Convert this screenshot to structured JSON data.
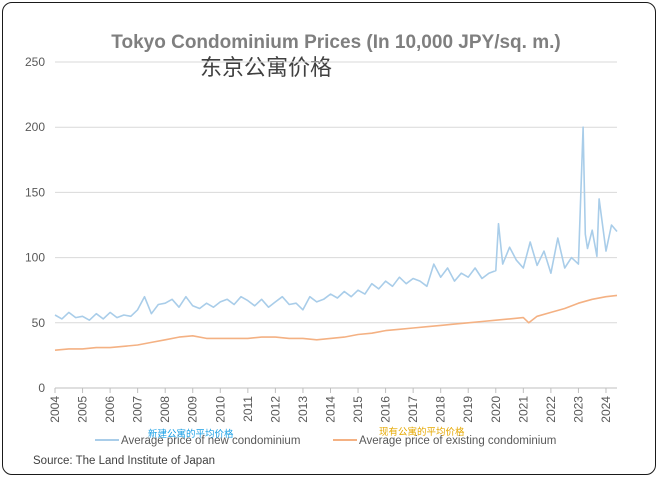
{
  "chart_data": {
    "type": "line",
    "title": "Tokyo Condominium Prices (In 10,000 JPY/sq. m.)",
    "subtitle": "东京公寓价格",
    "source": "Source: The Land Institute of Japan",
    "ylim": [
      0,
      250
    ],
    "yticks": [
      "0",
      "50",
      "100",
      "150",
      "200",
      "250"
    ],
    "xlim": [
      2004,
      2024.4
    ],
    "xticks": [
      "2004",
      "2005",
      "2006",
      "2007",
      "2008",
      "2009",
      "2010",
      "2011",
      "2012",
      "2013",
      "2014",
      "2015",
      "2016",
      "2017",
      "2018",
      "2019",
      "2020",
      "2021",
      "2022",
      "2023",
      "2024"
    ],
    "grid": true,
    "legend_position": "bottom",
    "series": [
      {
        "name": "Average price of new condominium",
        "name_cn": "新建公寓的平均价格",
        "color": "#a9cde9",
        "x": [
          2004.0,
          2004.25,
          2004.5,
          2004.75,
          2005.0,
          2005.25,
          2005.5,
          2005.75,
          2006.0,
          2006.25,
          2006.5,
          2006.75,
          2007.0,
          2007.25,
          2007.5,
          2007.75,
          2008.0,
          2008.25,
          2008.5,
          2008.75,
          2009.0,
          2009.25,
          2009.5,
          2009.75,
          2010.0,
          2010.25,
          2010.5,
          2010.75,
          2011.0,
          2011.25,
          2011.5,
          2011.75,
          2012.0,
          2012.25,
          2012.5,
          2012.75,
          2013.0,
          2013.25,
          2013.5,
          2013.75,
          2014.0,
          2014.25,
          2014.5,
          2014.75,
          2015.0,
          2015.25,
          2015.5,
          2015.75,
          2016.0,
          2016.25,
          2016.5,
          2016.75,
          2017.0,
          2017.25,
          2017.5,
          2017.75,
          2018.0,
          2018.25,
          2018.5,
          2018.75,
          2019.0,
          2019.25,
          2019.5,
          2019.75,
          2020.0,
          2020.1,
          2020.25,
          2020.5,
          2020.75,
          2021.0,
          2021.25,
          2021.5,
          2021.75,
          2022.0,
          2022.25,
          2022.5,
          2022.75,
          2023.0,
          2023.17,
          2023.25,
          2023.33,
          2023.5,
          2023.67,
          2023.75,
          2024.0,
          2024.2,
          2024.4
        ],
        "values": [
          56,
          53,
          58,
          54,
          55,
          52,
          57,
          53,
          58,
          54,
          56,
          55,
          60,
          70,
          57,
          64,
          65,
          68,
          62,
          70,
          63,
          61,
          65,
          62,
          66,
          68,
          64,
          70,
          67,
          63,
          68,
          62,
          66,
          70,
          64,
          65,
          60,
          70,
          66,
          68,
          72,
          69,
          74,
          70,
          75,
          72,
          80,
          76,
          82,
          78,
          85,
          80,
          84,
          82,
          78,
          95,
          85,
          92,
          82,
          88,
          85,
          92,
          84,
          88,
          90,
          126,
          95,
          108,
          98,
          92,
          112,
          94,
          105,
          88,
          115,
          92,
          100,
          95,
          200,
          118,
          107,
          121,
          101,
          145,
          105,
          125,
          120
        ]
      },
      {
        "name": "Average price of existing condominium",
        "name_cn": "现有公寓的平均价格",
        "color": "#f4b183",
        "x": [
          2004.0,
          2004.5,
          2005.0,
          2005.5,
          2006.0,
          2006.5,
          2007.0,
          2007.5,
          2008.0,
          2008.5,
          2009.0,
          2009.5,
          2010.0,
          2010.5,
          2011.0,
          2011.5,
          2012.0,
          2012.5,
          2013.0,
          2013.5,
          2014.0,
          2014.5,
          2015.0,
          2015.5,
          2016.0,
          2016.5,
          2017.0,
          2017.5,
          2018.0,
          2018.5,
          2019.0,
          2019.5,
          2020.0,
          2020.5,
          2021.0,
          2021.2,
          2021.5,
          2022.0,
          2022.5,
          2023.0,
          2023.5,
          2024.0,
          2024.4
        ],
        "values": [
          29,
          30,
          30,
          31,
          31,
          32,
          33,
          35,
          37,
          39,
          40,
          38,
          38,
          38,
          38,
          39,
          39,
          38,
          38,
          37,
          38,
          39,
          41,
          42,
          44,
          45,
          46,
          47,
          48,
          49,
          50,
          51,
          52,
          53,
          54,
          50,
          55,
          58,
          61,
          65,
          68,
          70,
          71
        ]
      }
    ]
  }
}
